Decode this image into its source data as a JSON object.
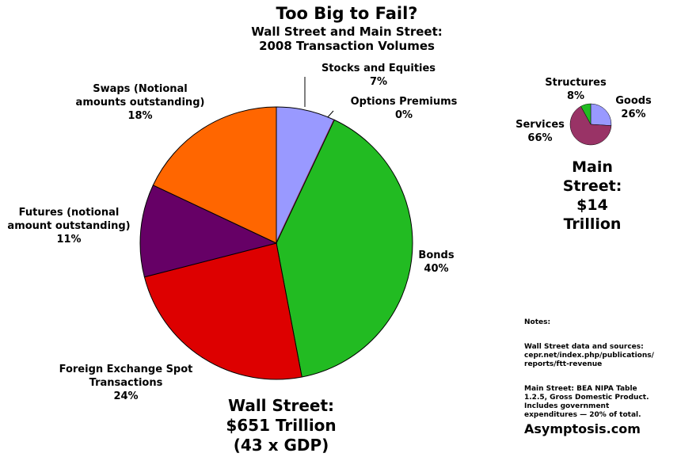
{
  "title": "Too Big to Fail?",
  "subtitle": "Wall Street and Main Street:\n2008 Transaction Volumes",
  "chart_data": [
    {
      "type": "pie",
      "categories": [
        "Stocks and Equities",
        "Options Premiums",
        "Bonds",
        "Foreign Exchange Spot\nTransactions",
        "Futures (notional\namount outstanding)",
        "Swaps (Notional\namounts outstanding)"
      ],
      "values": [
        7,
        0,
        40,
        24,
        11,
        18
      ],
      "value_labels": [
        "7%",
        "0%",
        "40%",
        "24%",
        "11%",
        "18%"
      ],
      "colors": [
        "#9999ff",
        "#993366",
        "#22bb22",
        "#dd0000",
        "#660066",
        "#ff6600"
      ],
      "caption": "Wall Street:\n$651 Trillion\n(43 x GDP)"
    },
    {
      "type": "pie",
      "categories": [
        "Goods",
        "Services",
        "Structures"
      ],
      "values": [
        26,
        66,
        8
      ],
      "value_labels": [
        "26%",
        "66%",
        "8%"
      ],
      "colors": [
        "#9999ff",
        "#993366",
        "#22bb22"
      ],
      "caption": "Main Street:\n$14 Trillion"
    }
  ],
  "notes": {
    "heading": "Notes:",
    "paragraphs": [
      "Wall Street data and sources:\ncepr.net/index.php/publications/\nreports/ftt-revenue",
      "Main Street: BEA NIPA Table\n1.2.5, Gross Domestic Product.\nIncludes government\nexpenditures — 20% of total."
    ]
  },
  "credit": "Asymptosis.com"
}
